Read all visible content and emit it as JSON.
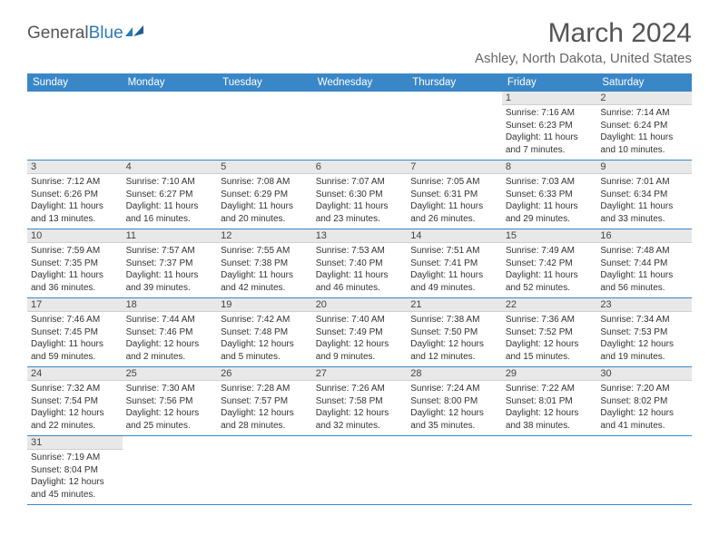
{
  "logo": {
    "text1": "General",
    "text2": "Blue"
  },
  "title": "March 2024",
  "location": "Ashley, North Dakota, United States",
  "headers": [
    "Sunday",
    "Monday",
    "Tuesday",
    "Wednesday",
    "Thursday",
    "Friday",
    "Saturday"
  ],
  "colors": {
    "header_bg": "#3a87c7",
    "header_fg": "#ffffff",
    "daynum_bg": "#e8e8e8",
    "border": "#3a87c7",
    "logo_blue": "#2a7ab8"
  },
  "weeks": [
    [
      null,
      null,
      null,
      null,
      null,
      {
        "n": "1",
        "sunrise": "7:16 AM",
        "sunset": "6:23 PM",
        "daylight": "11 hours and 7 minutes."
      },
      {
        "n": "2",
        "sunrise": "7:14 AM",
        "sunset": "6:24 PM",
        "daylight": "11 hours and 10 minutes."
      }
    ],
    [
      {
        "n": "3",
        "sunrise": "7:12 AM",
        "sunset": "6:26 PM",
        "daylight": "11 hours and 13 minutes."
      },
      {
        "n": "4",
        "sunrise": "7:10 AM",
        "sunset": "6:27 PM",
        "daylight": "11 hours and 16 minutes."
      },
      {
        "n": "5",
        "sunrise": "7:08 AM",
        "sunset": "6:29 PM",
        "daylight": "11 hours and 20 minutes."
      },
      {
        "n": "6",
        "sunrise": "7:07 AM",
        "sunset": "6:30 PM",
        "daylight": "11 hours and 23 minutes."
      },
      {
        "n": "7",
        "sunrise": "7:05 AM",
        "sunset": "6:31 PM",
        "daylight": "11 hours and 26 minutes."
      },
      {
        "n": "8",
        "sunrise": "7:03 AM",
        "sunset": "6:33 PM",
        "daylight": "11 hours and 29 minutes."
      },
      {
        "n": "9",
        "sunrise": "7:01 AM",
        "sunset": "6:34 PM",
        "daylight": "11 hours and 33 minutes."
      }
    ],
    [
      {
        "n": "10",
        "sunrise": "7:59 AM",
        "sunset": "7:35 PM",
        "daylight": "11 hours and 36 minutes."
      },
      {
        "n": "11",
        "sunrise": "7:57 AM",
        "sunset": "7:37 PM",
        "daylight": "11 hours and 39 minutes."
      },
      {
        "n": "12",
        "sunrise": "7:55 AM",
        "sunset": "7:38 PM",
        "daylight": "11 hours and 42 minutes."
      },
      {
        "n": "13",
        "sunrise": "7:53 AM",
        "sunset": "7:40 PM",
        "daylight": "11 hours and 46 minutes."
      },
      {
        "n": "14",
        "sunrise": "7:51 AM",
        "sunset": "7:41 PM",
        "daylight": "11 hours and 49 minutes."
      },
      {
        "n": "15",
        "sunrise": "7:49 AM",
        "sunset": "7:42 PM",
        "daylight": "11 hours and 52 minutes."
      },
      {
        "n": "16",
        "sunrise": "7:48 AM",
        "sunset": "7:44 PM",
        "daylight": "11 hours and 56 minutes."
      }
    ],
    [
      {
        "n": "17",
        "sunrise": "7:46 AM",
        "sunset": "7:45 PM",
        "daylight": "11 hours and 59 minutes."
      },
      {
        "n": "18",
        "sunrise": "7:44 AM",
        "sunset": "7:46 PM",
        "daylight": "12 hours and 2 minutes."
      },
      {
        "n": "19",
        "sunrise": "7:42 AM",
        "sunset": "7:48 PM",
        "daylight": "12 hours and 5 minutes."
      },
      {
        "n": "20",
        "sunrise": "7:40 AM",
        "sunset": "7:49 PM",
        "daylight": "12 hours and 9 minutes."
      },
      {
        "n": "21",
        "sunrise": "7:38 AM",
        "sunset": "7:50 PM",
        "daylight": "12 hours and 12 minutes."
      },
      {
        "n": "22",
        "sunrise": "7:36 AM",
        "sunset": "7:52 PM",
        "daylight": "12 hours and 15 minutes."
      },
      {
        "n": "23",
        "sunrise": "7:34 AM",
        "sunset": "7:53 PM",
        "daylight": "12 hours and 19 minutes."
      }
    ],
    [
      {
        "n": "24",
        "sunrise": "7:32 AM",
        "sunset": "7:54 PM",
        "daylight": "12 hours and 22 minutes."
      },
      {
        "n": "25",
        "sunrise": "7:30 AM",
        "sunset": "7:56 PM",
        "daylight": "12 hours and 25 minutes."
      },
      {
        "n": "26",
        "sunrise": "7:28 AM",
        "sunset": "7:57 PM",
        "daylight": "12 hours and 28 minutes."
      },
      {
        "n": "27",
        "sunrise": "7:26 AM",
        "sunset": "7:58 PM",
        "daylight": "12 hours and 32 minutes."
      },
      {
        "n": "28",
        "sunrise": "7:24 AM",
        "sunset": "8:00 PM",
        "daylight": "12 hours and 35 minutes."
      },
      {
        "n": "29",
        "sunrise": "7:22 AM",
        "sunset": "8:01 PM",
        "daylight": "12 hours and 38 minutes."
      },
      {
        "n": "30",
        "sunrise": "7:20 AM",
        "sunset": "8:02 PM",
        "daylight": "12 hours and 41 minutes."
      }
    ],
    [
      {
        "n": "31",
        "sunrise": "7:19 AM",
        "sunset": "8:04 PM",
        "daylight": "12 hours and 45 minutes."
      },
      null,
      null,
      null,
      null,
      null,
      null
    ]
  ]
}
